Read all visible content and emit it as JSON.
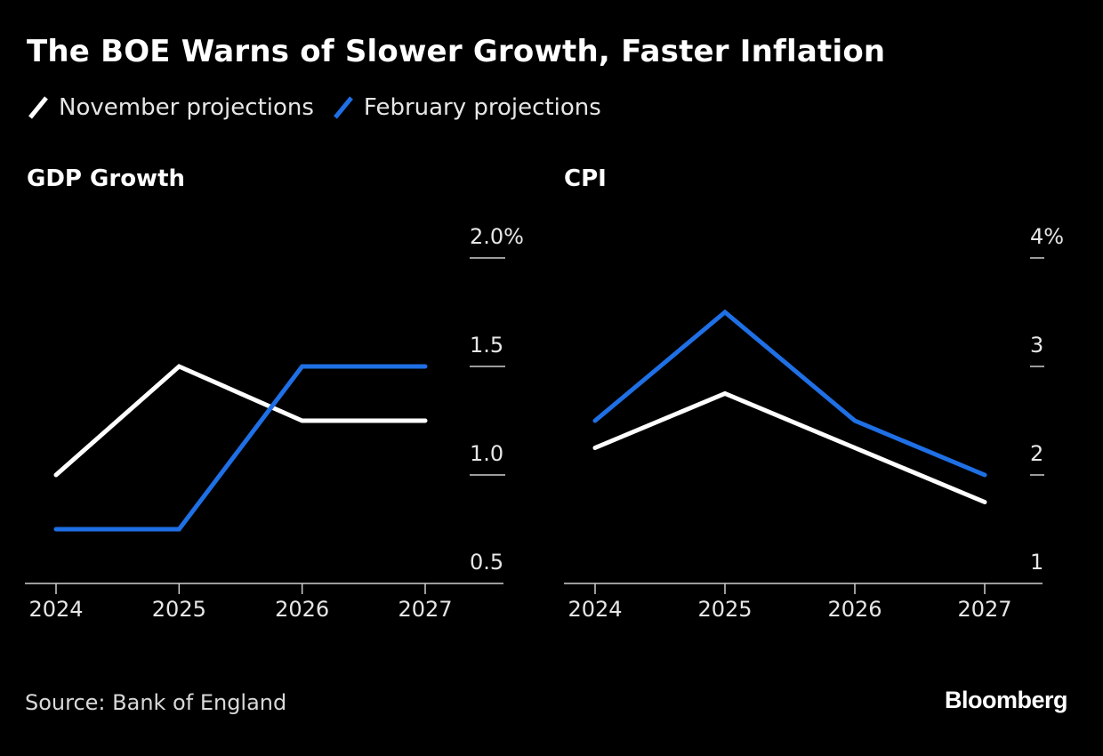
{
  "title": "The BOE Warns of Slower Growth, Faster Inflation",
  "legend": [
    {
      "label": "November projections",
      "color": "#ffffff"
    },
    {
      "label": "February projections",
      "color": "#1f6fe5"
    }
  ],
  "footer": {
    "source": "Source: Bank of England",
    "brand": "Bloomberg"
  },
  "chart_data": [
    {
      "type": "line",
      "title": "GDP Growth",
      "categories": [
        "2024",
        "2025",
        "2026",
        "2027"
      ],
      "series": [
        {
          "name": "November projections",
          "color": "#ffffff",
          "values": [
            1.0,
            1.5,
            1.25,
            1.25
          ]
        },
        {
          "name": "February projections",
          "color": "#1f6fe5",
          "values": [
            0.75,
            0.75,
            1.5,
            1.5
          ]
        }
      ],
      "ylim": [
        0.5,
        2.0
      ],
      "yticks": [
        0.5,
        1.0,
        1.5,
        2.0
      ],
      "ytick_labels": [
        "0.5",
        "1.0",
        "1.5",
        "2.0%"
      ],
      "yaxis_side": "right",
      "xlabel": "",
      "ylabel": ""
    },
    {
      "type": "line",
      "title": "CPI",
      "categories": [
        "2024",
        "2025",
        "2026",
        "2027"
      ],
      "series": [
        {
          "name": "November projections",
          "color": "#ffffff",
          "values": [
            2.25,
            2.75,
            2.25,
            1.75
          ]
        },
        {
          "name": "February projections",
          "color": "#1f6fe5",
          "values": [
            2.5,
            3.5,
            2.5,
            2.0
          ]
        }
      ],
      "ylim": [
        1,
        4
      ],
      "yticks": [
        1,
        2,
        3,
        4
      ],
      "ytick_labels": [
        "1",
        "2",
        "3",
        "4%"
      ],
      "yaxis_side": "right",
      "xlabel": "",
      "ylabel": ""
    }
  ]
}
